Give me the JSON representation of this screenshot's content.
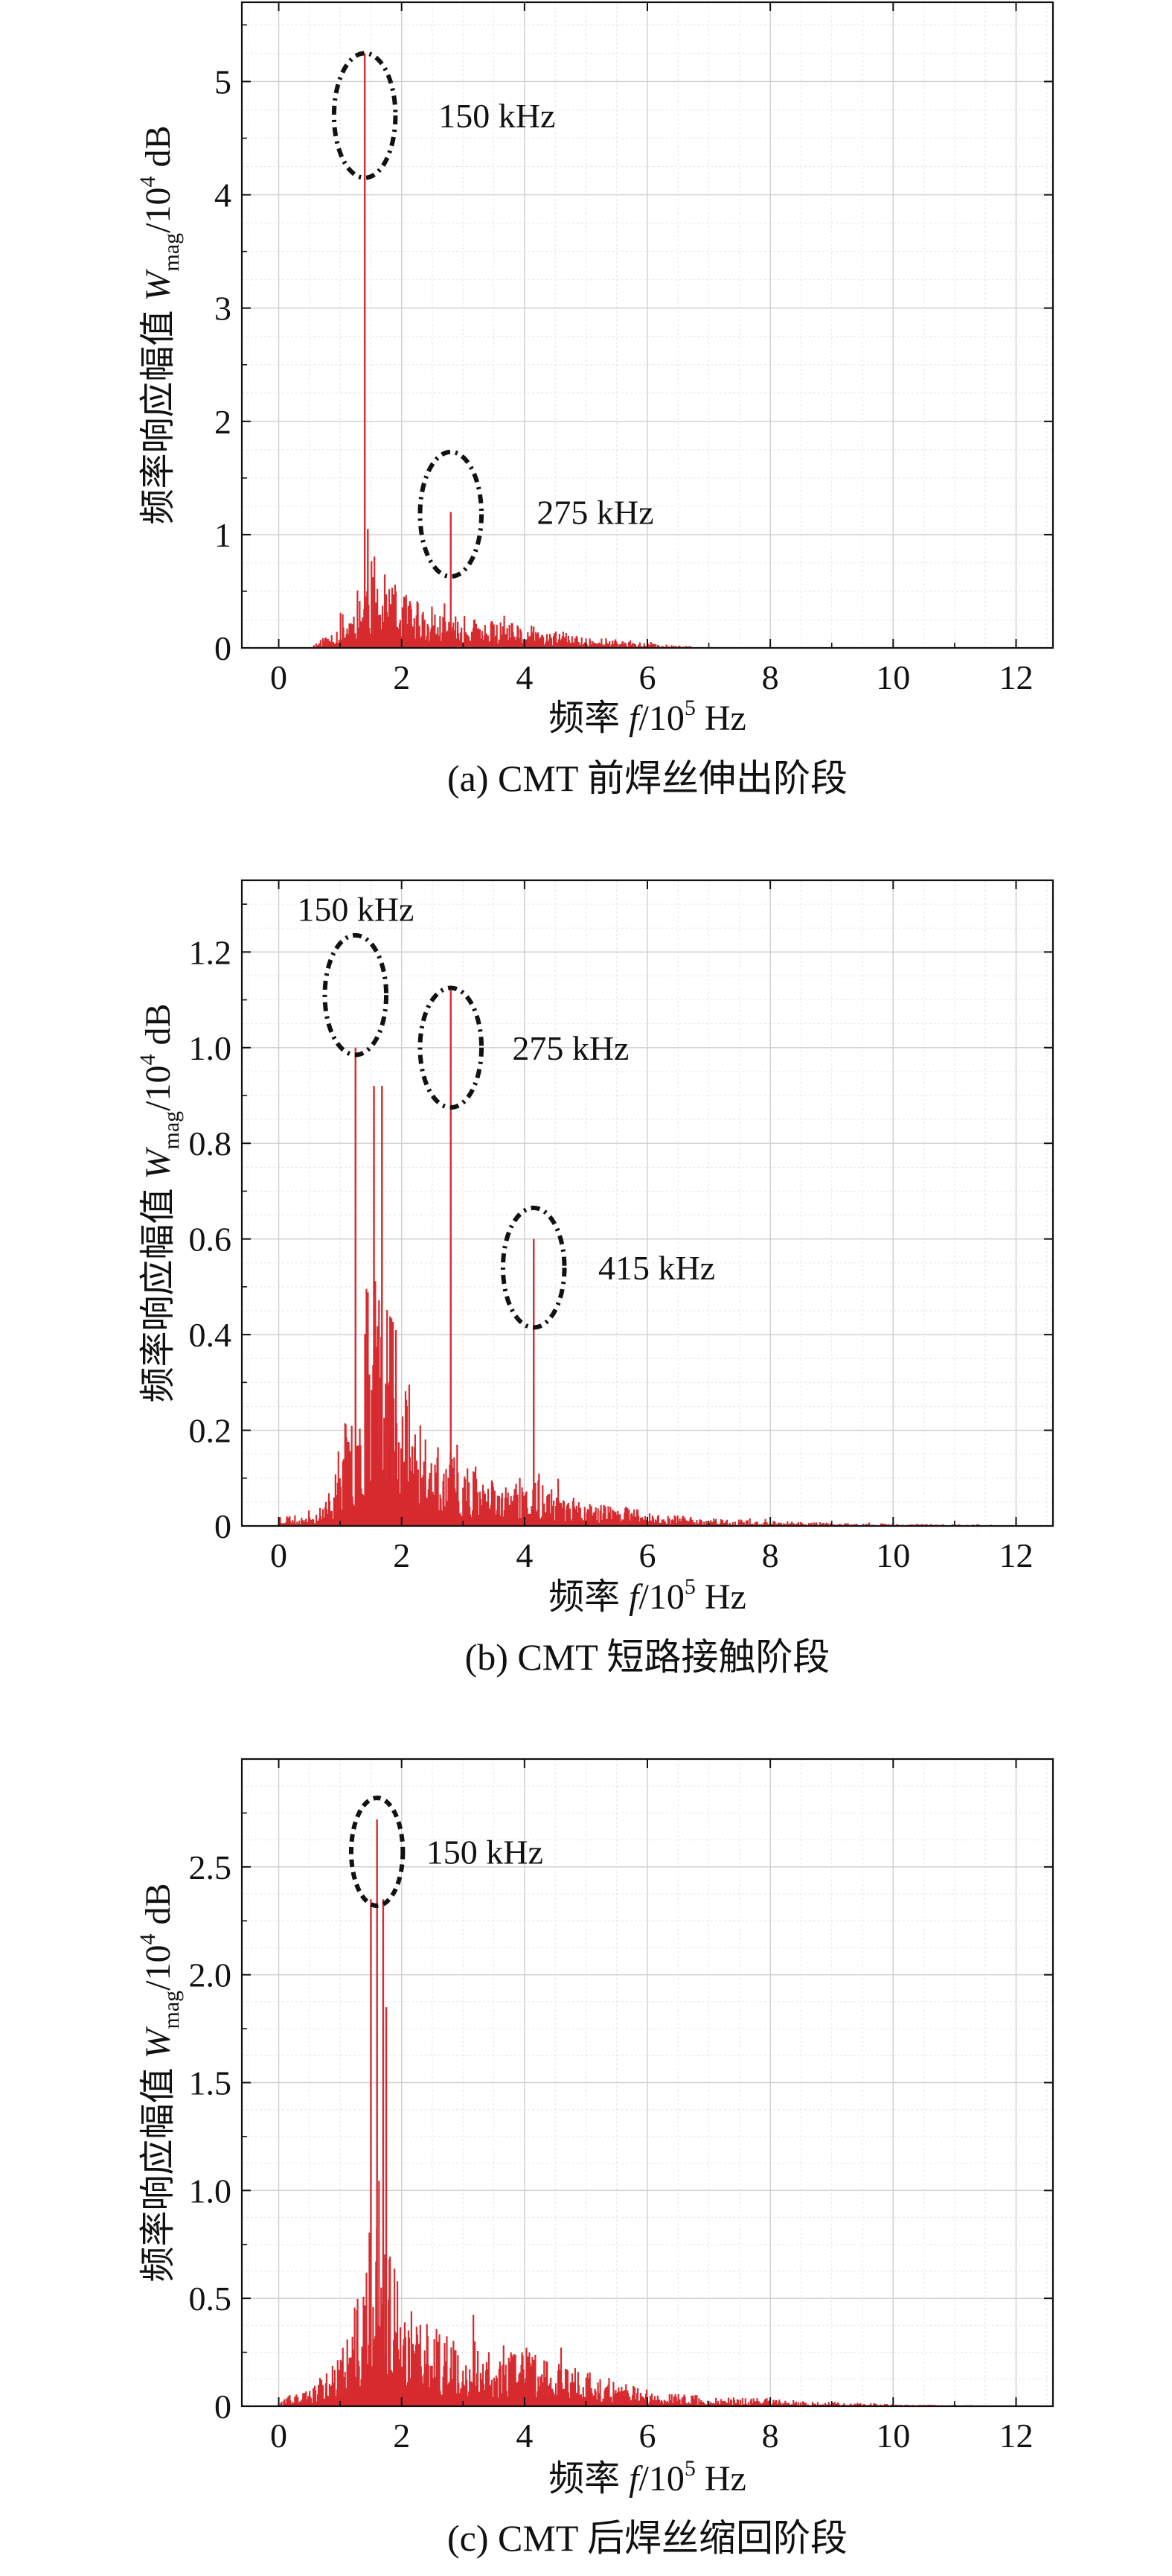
{
  "colors": {
    "spectrum": "#d62a2e",
    "axis": "#111111",
    "grid_major": "#cfcfcf",
    "grid_minor": "#e6e6e6",
    "annotation": "#111111"
  },
  "chart_data": [
    {
      "type": "bar",
      "caption": "(a) CMT 前焊丝伸出阶段",
      "xlabel": {
        "prefix": "频率 ",
        "var": "f",
        "mid": "/10",
        "sup": "5",
        "unit": " Hz"
      },
      "ylabel": {
        "prefix": "频率响应幅值 ",
        "var": "W",
        "sub": "mag",
        "mid": "/10",
        "sup": "4",
        "unit": " dB"
      },
      "xlim": [
        -0.6,
        12.6
      ],
      "ylim": [
        0,
        5.7
      ],
      "xticks": [
        0,
        2,
        4,
        6,
        8,
        10,
        12
      ],
      "yticks": [
        0,
        1,
        2,
        3,
        4,
        5
      ],
      "ytick_labels": [
        "0",
        "1",
        "2",
        "3",
        "4",
        "5"
      ],
      "spectrum": {
        "range": [
          0.55,
          6.8
        ],
        "envelope": [
          [
            0.55,
            0.03
          ],
          [
            0.8,
            0.12
          ],
          [
            1.0,
            0.25
          ],
          [
            1.2,
            0.4
          ],
          [
            1.4,
            0.72
          ],
          [
            1.55,
            0.75
          ],
          [
            1.8,
            0.55
          ],
          [
            2.2,
            0.38
          ],
          [
            2.6,
            0.32
          ],
          [
            3.0,
            0.26
          ],
          [
            3.5,
            0.22
          ],
          [
            4.0,
            0.19
          ],
          [
            4.5,
            0.14
          ],
          [
            5.0,
            0.1
          ],
          [
            5.5,
            0.07
          ],
          [
            6.0,
            0.04
          ],
          [
            6.5,
            0.02
          ],
          [
            6.8,
            0.01
          ]
        ],
        "peaks": [
          {
            "freq": 1.4,
            "value": 5.25
          },
          {
            "freq": 1.45,
            "value": 1.05
          },
          {
            "freq": 2.8,
            "value": 1.2
          }
        ],
        "seed": 11
      },
      "annotations": [
        {
          "text": "150 kHz",
          "x": 1.4,
          "y": 4.7,
          "rx": 0.5,
          "ry": 0.55,
          "label_x": 2.6,
          "label_y": 4.7,
          "dash": "12,7,3,7"
        },
        {
          "text": "275 kHz",
          "x": 2.8,
          "y": 1.18,
          "rx": 0.5,
          "ry": 0.55,
          "label_x": 4.2,
          "label_y": 1.2,
          "dash": "12,7,3,7"
        }
      ]
    },
    {
      "type": "bar",
      "caption": "(b) CMT 短路接触阶段",
      "xlabel": {
        "prefix": "频率 ",
        "var": "f",
        "mid": "/10",
        "sup": "5",
        "unit": " Hz"
      },
      "ylabel": {
        "prefix": "频率响应幅值 ",
        "var": "W",
        "sub": "mag",
        "mid": "/10",
        "sup": "4",
        "unit": " dB"
      },
      "xlim": [
        -0.6,
        12.6
      ],
      "ylim": [
        0,
        1.35
      ],
      "xticks": [
        0,
        2,
        4,
        6,
        8,
        10,
        12
      ],
      "yticks": [
        0,
        0.2,
        0.4,
        0.6,
        0.8,
        1.0,
        1.2
      ],
      "ytick_labels": [
        "0",
        "0.2",
        "0.4",
        "0.6",
        "0.8",
        "1.0",
        "1.2"
      ],
      "spectrum": {
        "range": [
          0.0,
          11.6
        ],
        "envelope": [
          [
            0.0,
            0.03
          ],
          [
            0.3,
            0.02
          ],
          [
            0.7,
            0.04
          ],
          [
            0.9,
            0.1
          ],
          [
            1.1,
            0.22
          ],
          [
            1.3,
            0.3
          ],
          [
            1.5,
            0.55
          ],
          [
            1.65,
            0.72
          ],
          [
            1.8,
            0.55
          ],
          [
            2.0,
            0.35
          ],
          [
            2.3,
            0.22
          ],
          [
            2.6,
            0.15
          ],
          [
            3.0,
            0.13
          ],
          [
            3.5,
            0.1
          ],
          [
            4.0,
            0.09
          ],
          [
            4.5,
            0.07
          ],
          [
            5.0,
            0.05
          ],
          [
            6.0,
            0.03
          ],
          [
            7.0,
            0.015
          ],
          [
            8.0,
            0.01
          ],
          [
            9.0,
            0.006
          ],
          [
            10.0,
            0.004
          ],
          [
            11.6,
            0.003
          ]
        ],
        "peaks": [
          {
            "freq": 1.25,
            "value": 1.0
          },
          {
            "freq": 1.55,
            "value": 0.92
          },
          {
            "freq": 1.68,
            "value": 0.92
          },
          {
            "freq": 2.8,
            "value": 1.12
          },
          {
            "freq": 4.15,
            "value": 0.6
          }
        ],
        "seed": 23
      },
      "annotations": [
        {
          "text": "150 kHz",
          "x": 1.25,
          "y": 1.11,
          "rx": 0.5,
          "ry": 0.125,
          "label_x": 0.3,
          "label_y": 1.29,
          "dash": "12,7,3,7"
        },
        {
          "text": "275 kHz",
          "x": 2.8,
          "y": 1.0,
          "rx": 0.5,
          "ry": 0.125,
          "label_x": 3.8,
          "label_y": 1.0,
          "dash": "12,7,3,7"
        },
        {
          "text": "415 kHz",
          "x": 4.15,
          "y": 0.54,
          "rx": 0.5,
          "ry": 0.125,
          "label_x": 5.2,
          "label_y": 0.54,
          "dash": "12,7,3,7"
        }
      ]
    },
    {
      "type": "bar",
      "caption": "(c) CMT 后焊丝缩回阶段",
      "xlabel": {
        "prefix": "频率 ",
        "var": "f",
        "mid": "/10",
        "sup": "5",
        "unit": " Hz"
      },
      "ylabel": {
        "prefix": "频率响应幅值 ",
        "var": "W",
        "sub": "mag",
        "mid": "/10",
        "sup": "4",
        "unit": " dB"
      },
      "xlim": [
        -0.6,
        12.6
      ],
      "ylim": [
        0,
        3.0
      ],
      "xticks": [
        0,
        2,
        4,
        6,
        8,
        10,
        12
      ],
      "yticks": [
        0,
        0.5,
        1.0,
        1.5,
        2.0,
        2.5
      ],
      "ytick_labels": [
        "0",
        "0.5",
        "1.0",
        "1.5",
        "2.0",
        "2.5"
      ],
      "spectrum": {
        "range": [
          0.0,
          11.6
        ],
        "envelope": [
          [
            0.0,
            0.03
          ],
          [
            0.4,
            0.06
          ],
          [
            0.8,
            0.15
          ],
          [
            1.1,
            0.3
          ],
          [
            1.3,
            0.5
          ],
          [
            1.5,
            0.8
          ],
          [
            1.65,
            1.0
          ],
          [
            1.8,
            0.7
          ],
          [
            2.0,
            0.45
          ],
          [
            2.5,
            0.35
          ],
          [
            3.0,
            0.3
          ],
          [
            3.5,
            0.25
          ],
          [
            4.0,
            0.28
          ],
          [
            4.5,
            0.22
          ],
          [
            5.0,
            0.15
          ],
          [
            6.0,
            0.07
          ],
          [
            7.0,
            0.04
          ],
          [
            8.0,
            0.035
          ],
          [
            9.0,
            0.02
          ],
          [
            10.0,
            0.008
          ],
          [
            11.6,
            0.004
          ]
        ],
        "peaks": [
          {
            "freq": 1.5,
            "value": 2.35
          },
          {
            "freq": 1.6,
            "value": 2.72
          },
          {
            "freq": 1.7,
            "value": 2.35
          },
          {
            "freq": 1.75,
            "value": 1.85
          }
        ],
        "seed": 37
      },
      "annotations": [
        {
          "text": "150 kHz",
          "x": 1.6,
          "y": 2.57,
          "rx": 0.42,
          "ry": 0.25,
          "label_x": 2.4,
          "label_y": 2.57,
          "dash": "10,7"
        }
      ]
    }
  ]
}
